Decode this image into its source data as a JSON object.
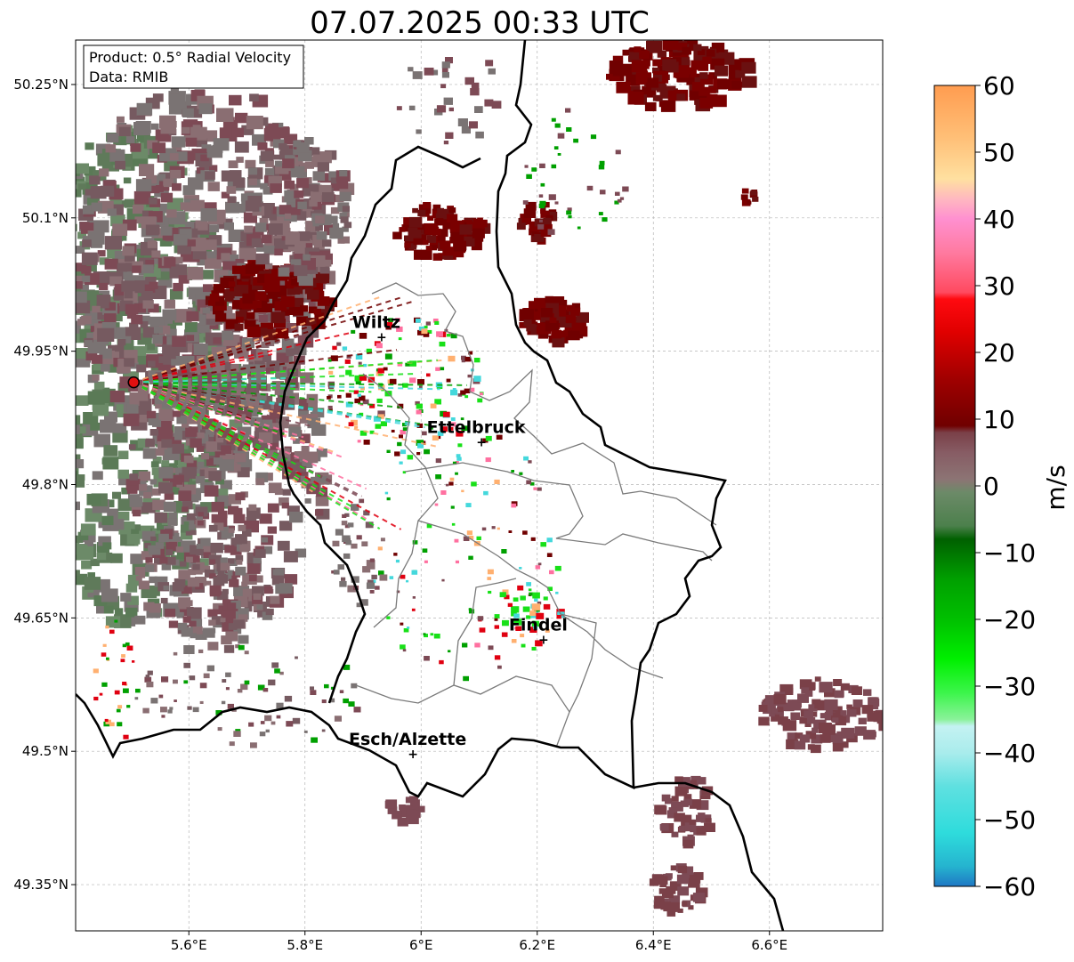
{
  "title": "07.07.2025 00:33 UTC",
  "info_box": {
    "product": "Product: 0.5° Radial Velocity",
    "data": "Data: RMIB"
  },
  "axes": {
    "lon_range": [
      5.405,
      6.795
    ],
    "lat_range": [
      49.298,
      50.3
    ],
    "x_ticks": [
      {
        "value": 5.6,
        "label": "5.6°E"
      },
      {
        "value": 5.8,
        "label": "5.8°E"
      },
      {
        "value": 6.0,
        "label": "6°E"
      },
      {
        "value": 6.2,
        "label": "6.2°E"
      },
      {
        "value": 6.4,
        "label": "6.4°E"
      },
      {
        "value": 6.6,
        "label": "6.6°E"
      }
    ],
    "y_ticks": [
      {
        "value": 50.25,
        "label": "50.25°N"
      },
      {
        "value": 50.1,
        "label": "50.1°N"
      },
      {
        "value": 49.95,
        "label": "49.95°N"
      },
      {
        "value": 49.8,
        "label": "49.8°N"
      },
      {
        "value": 49.65,
        "label": "49.65°N"
      },
      {
        "value": 49.5,
        "label": "49.5°N"
      },
      {
        "value": 49.35,
        "label": "49.35°N"
      }
    ],
    "grid": true
  },
  "cities": [
    {
      "name": "Wiltz",
      "lon": 5.932,
      "lat": 49.966
    },
    {
      "name": "Ettelbruck",
      "lon": 6.104,
      "lat": 49.848
    },
    {
      "name": "Findel",
      "lon": 6.211,
      "lat": 49.626
    },
    {
      "name": "Esch/Alzette",
      "lon": 5.986,
      "lat": 49.497
    }
  ],
  "radar_site": {
    "lon": 5.505,
    "lat": 49.915
  },
  "colorbar": {
    "label": "m/s",
    "min": -60,
    "max": 60,
    "ticks": [
      {
        "value": 60,
        "label": "60"
      },
      {
        "value": 50,
        "label": "50"
      },
      {
        "value": 40,
        "label": "40"
      },
      {
        "value": 30,
        "label": "30"
      },
      {
        "value": 20,
        "label": "20"
      },
      {
        "value": 10,
        "label": "10"
      },
      {
        "value": 0,
        "label": "0"
      },
      {
        "value": -10,
        "label": "−10"
      },
      {
        "value": -20,
        "label": "−20"
      },
      {
        "value": -30,
        "label": "−30"
      },
      {
        "value": -40,
        "label": "−40"
      },
      {
        "value": -50,
        "label": "−50"
      },
      {
        "value": -60,
        "label": "−60"
      }
    ],
    "stops": [
      {
        "v": -60,
        "c": "#1f77c4"
      },
      {
        "v": -57,
        "c": "#25b4cf"
      },
      {
        "v": -52,
        "c": "#2edcdc"
      },
      {
        "v": -45,
        "c": "#5fe0e0"
      },
      {
        "v": -40,
        "c": "#a9ecec"
      },
      {
        "v": -36,
        "c": "#c4f2f2"
      },
      {
        "v": -35,
        "c": "#8af29a"
      },
      {
        "v": -31,
        "c": "#3cf54b"
      },
      {
        "v": -26,
        "c": "#00f000"
      },
      {
        "v": -20,
        "c": "#00c000"
      },
      {
        "v": -14,
        "c": "#00a000"
      },
      {
        "v": -8,
        "c": "#006000"
      },
      {
        "v": -6,
        "c": "#4c804c"
      },
      {
        "v": -1,
        "c": "#6c8a68"
      },
      {
        "v": 1,
        "c": "#8c7474"
      },
      {
        "v": 5,
        "c": "#875c64"
      },
      {
        "v": 8,
        "c": "#7a4048"
      },
      {
        "v": 9,
        "c": "#700000"
      },
      {
        "v": 16,
        "c": "#a00000"
      },
      {
        "v": 23,
        "c": "#e00000"
      },
      {
        "v": 28,
        "c": "#ff0a10"
      },
      {
        "v": 29,
        "c": "#ff4a60"
      },
      {
        "v": 35,
        "c": "#ff7aa0"
      },
      {
        "v": 40,
        "c": "#ff90d0"
      },
      {
        "v": 43,
        "c": "#ffb8c0"
      },
      {
        "v": 46,
        "c": "#ffe0a0"
      },
      {
        "v": 52,
        "c": "#ffc078"
      },
      {
        "v": 60,
        "c": "#ff9c50"
      }
    ]
  },
  "colors": {
    "receding_dark": "#700000",
    "receding_muted": "#7d4a55",
    "near_zero": "#7a7373",
    "approaching_muted": "#5f7a5a",
    "approaching_green": "#00a000",
    "bright_green": "#18e018",
    "cyan": "#44d8dc",
    "orange": "#ffb070",
    "pink": "#ff70a0",
    "red": "#e00010"
  }
}
